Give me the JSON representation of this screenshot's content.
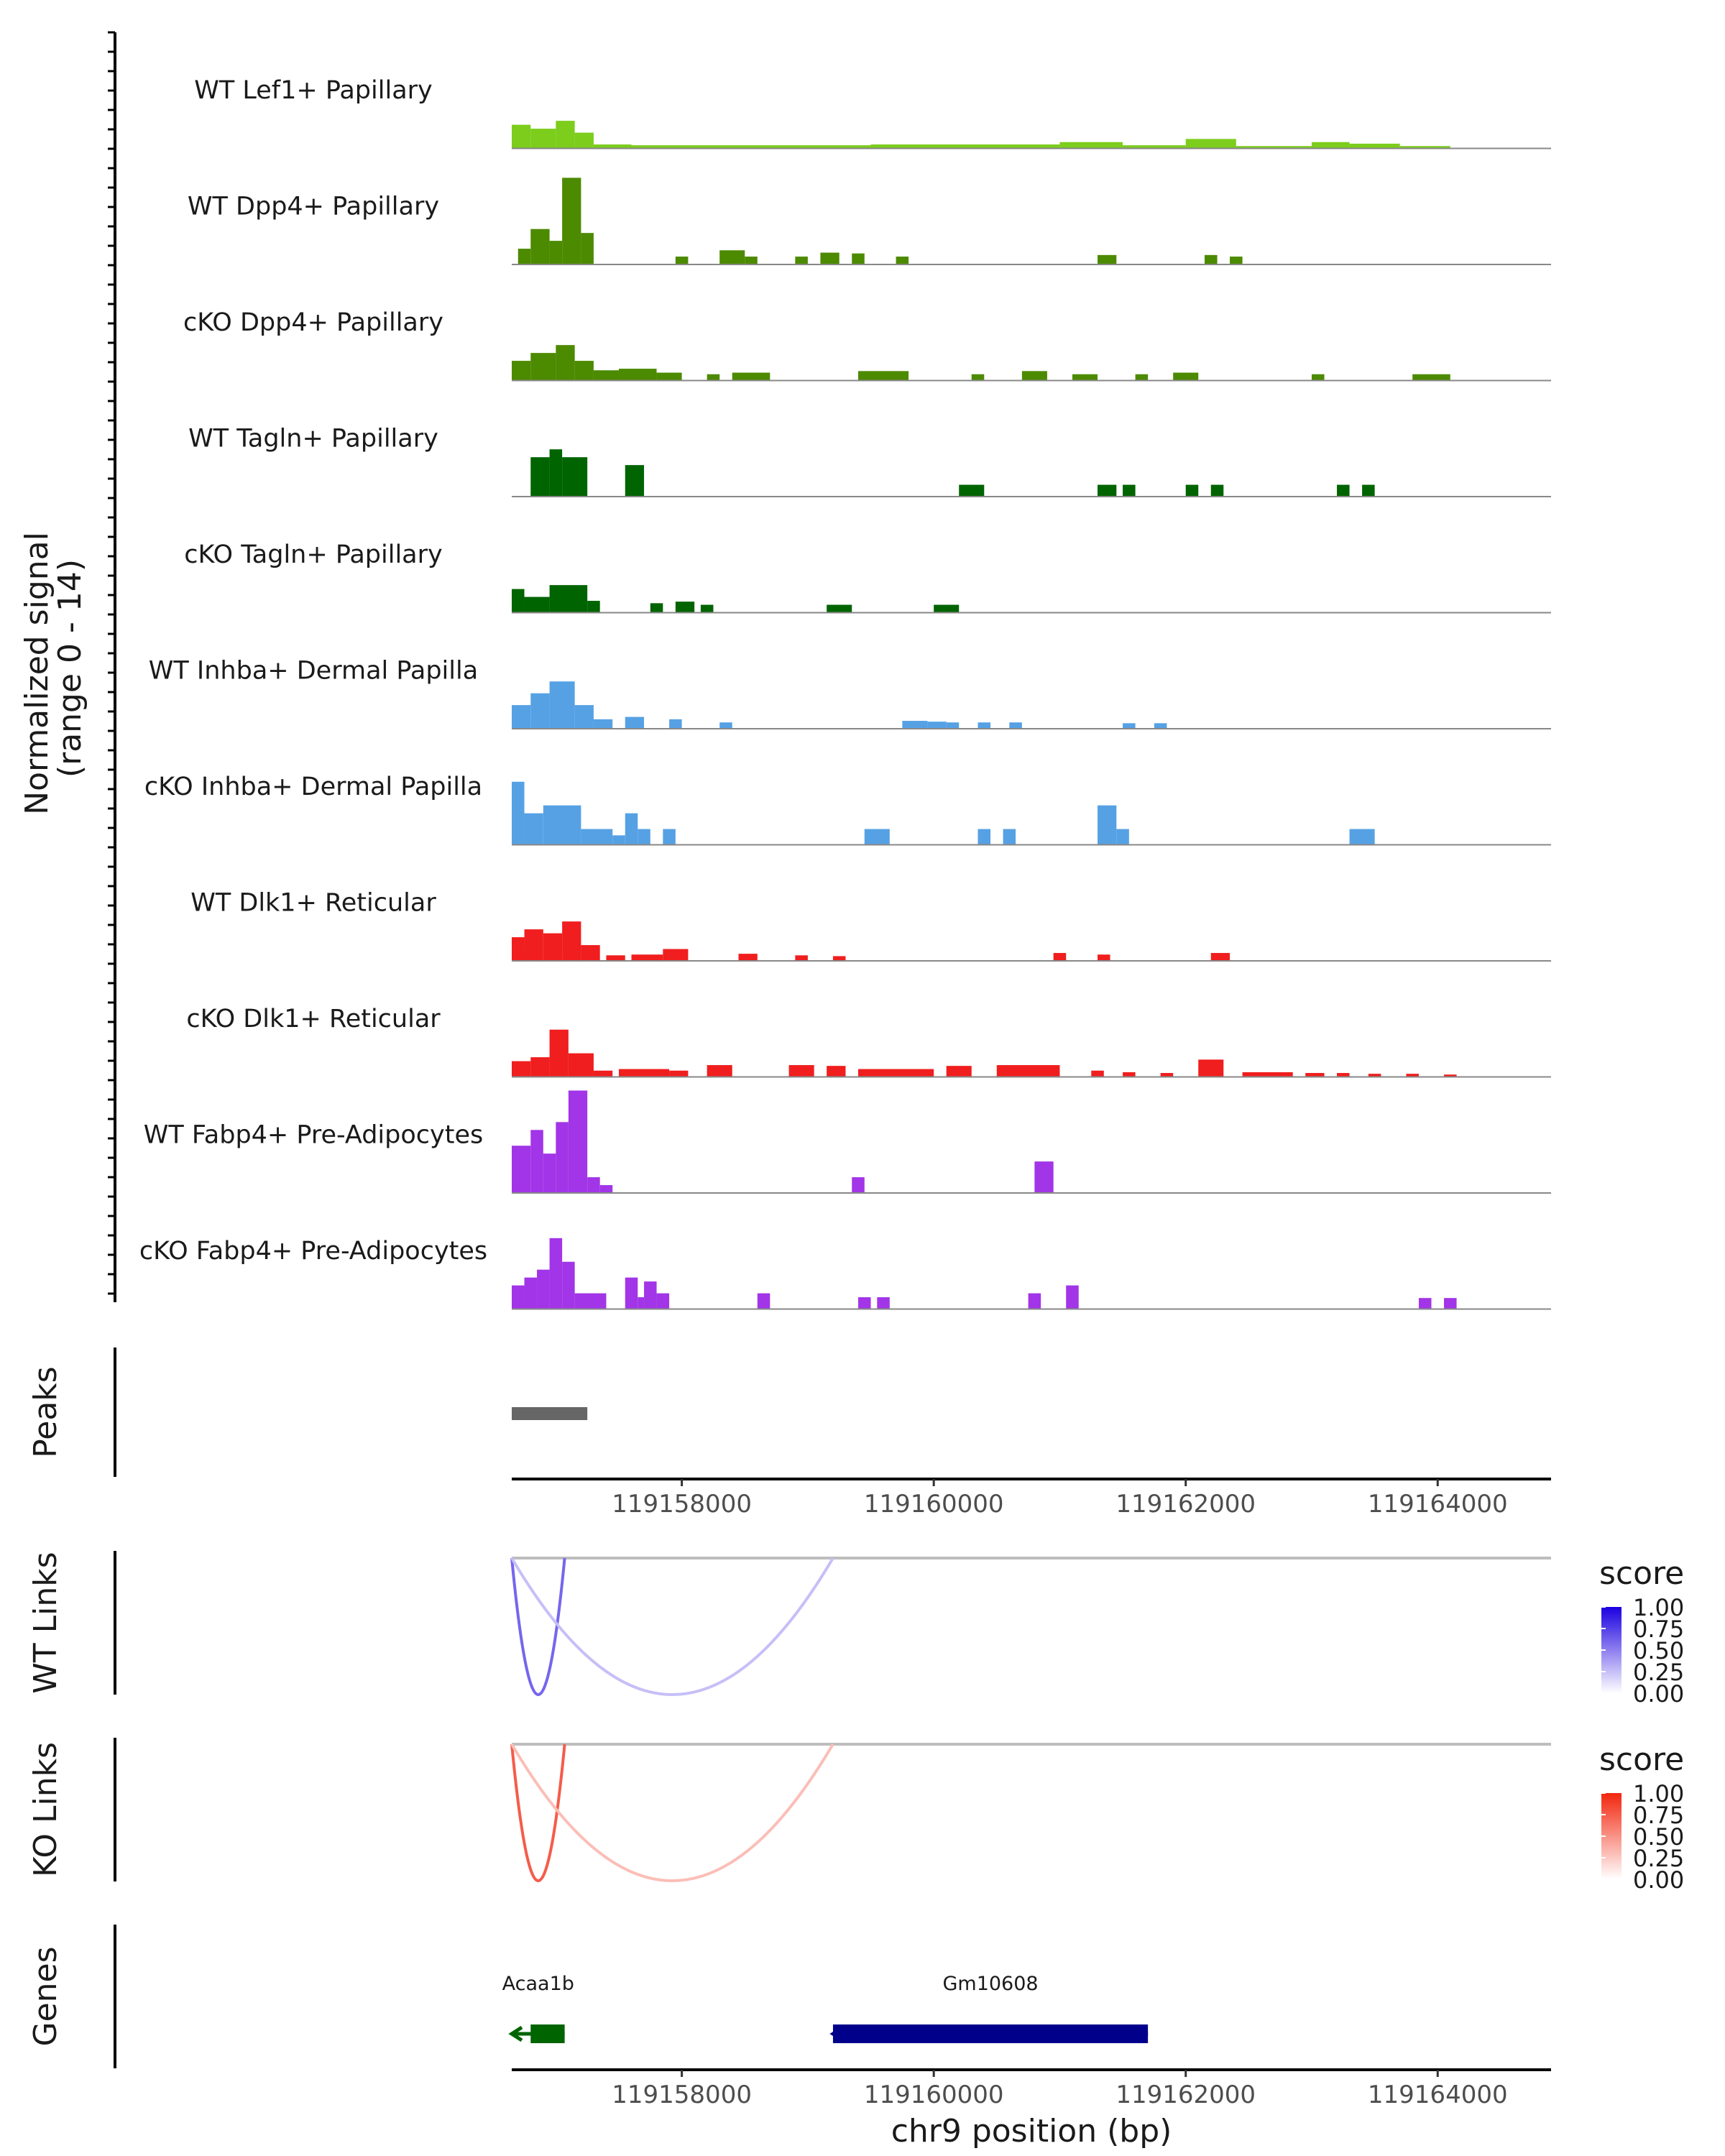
{
  "chart_data": {
    "type": "coverage",
    "region": {
      "chrom": "chr9",
      "start": 119156650,
      "end": 119164900
    },
    "xlabel": "chr9 position (bp)",
    "x_ticks": [
      119158000,
      119160000,
      119162000,
      119164000
    ],
    "coverage": {
      "ylabel": "Normalized signal\n(range 0 - 14)",
      "ylim": [
        0,
        14
      ],
      "tracks": [
        {
          "name": "WT Lef1+ Papillary",
          "color": "#7CCD1C",
          "segments": [
            [
              119156650,
              119156800,
              3
            ],
            [
              119156800,
              119157000,
              2.5
            ],
            [
              119157000,
              119157150,
              3.5
            ],
            [
              119157150,
              119157300,
              2
            ],
            [
              119157300,
              119157600,
              0.5
            ],
            [
              119157600,
              119159500,
              0.4
            ],
            [
              119159500,
              119161000,
              0.5
            ],
            [
              119161000,
              119161500,
              0.8
            ],
            [
              119161500,
              119162000,
              0.4
            ],
            [
              119162000,
              119162400,
              1.2
            ],
            [
              119162400,
              119163000,
              0.3
            ],
            [
              119163000,
              119163300,
              0.8
            ],
            [
              119163300,
              119163700,
              0.6
            ],
            [
              119163700,
              119164000,
              0.3
            ],
            [
              119164000,
              119164100,
              0.3
            ]
          ]
        },
        {
          "name": "WT Dpp4+ Papillary",
          "color": "#4C8A00",
          "segments": [
            [
              119156700,
              119156800,
              2
            ],
            [
              119156800,
              119156950,
              4.5
            ],
            [
              119156950,
              119157050,
              3
            ],
            [
              119157050,
              119157200,
              11
            ],
            [
              119157200,
              119157300,
              4
            ],
            [
              119157950,
              119158050,
              1
            ],
            [
              119158300,
              119158500,
              1.8
            ],
            [
              119158500,
              119158600,
              1
            ],
            [
              119158900,
              119159000,
              1
            ],
            [
              119159100,
              119159250,
              1.5
            ],
            [
              119159350,
              119159450,
              1.4
            ],
            [
              119159700,
              119159800,
              1
            ],
            [
              119161300,
              119161450,
              1.2
            ],
            [
              119162150,
              119162250,
              1.2
            ],
            [
              119162350,
              119162450,
              1
            ]
          ]
        },
        {
          "name": "cKO Dpp4+ Papillary",
          "color": "#4C8A00",
          "segments": [
            [
              119156650,
              119156800,
              2.5
            ],
            [
              119156800,
              119157000,
              3.5
            ],
            [
              119157000,
              119157150,
              4.5
            ],
            [
              119157150,
              119157300,
              2.5
            ],
            [
              119157300,
              119157500,
              1.3
            ],
            [
              119157500,
              119157800,
              1.5
            ],
            [
              119157800,
              119158000,
              1
            ],
            [
              119158200,
              119158300,
              0.8
            ],
            [
              119158400,
              119158700,
              1
            ],
            [
              119159400,
              119159800,
              1.2
            ],
            [
              119160300,
              119160400,
              0.8
            ],
            [
              119160700,
              119160900,
              1.2
            ],
            [
              119161100,
              119161300,
              0.8
            ],
            [
              119161600,
              119161700,
              0.8
            ],
            [
              119161900,
              119162100,
              1
            ],
            [
              119163000,
              119163100,
              0.8
            ],
            [
              119163800,
              119164100,
              0.8
            ]
          ]
        },
        {
          "name": "WT Tagln+ Papillary",
          "color": "#006400",
          "segments": [
            [
              119156800,
              119156950,
              5
            ],
            [
              119156950,
              119157050,
              6
            ],
            [
              119157050,
              119157250,
              5
            ],
            [
              119157550,
              119157700,
              4
            ],
            [
              119160200,
              119160400,
              1.5
            ],
            [
              119161300,
              119161450,
              1.5
            ],
            [
              119161500,
              119161600,
              1.5
            ],
            [
              119162000,
              119162100,
              1.5
            ],
            [
              119162200,
              119162300,
              1.5
            ],
            [
              119163200,
              119163300,
              1.5
            ],
            [
              119163400,
              119163500,
              1.5
            ]
          ]
        },
        {
          "name": "cKO Tagln+ Papillary",
          "color": "#006400",
          "segments": [
            [
              119156650,
              119156750,
              3
            ],
            [
              119156750,
              119156950,
              2
            ],
            [
              119156950,
              119157250,
              3.5
            ],
            [
              119157250,
              119157350,
              1.5
            ],
            [
              119157750,
              119157850,
              1.2
            ],
            [
              119157950,
              119158100,
              1.4
            ],
            [
              119158150,
              119158250,
              1
            ],
            [
              119159150,
              119159350,
              1
            ],
            [
              119160000,
              119160200,
              1
            ]
          ]
        },
        {
          "name": "WT Inhba+ Dermal Papilla",
          "color": "#56A1E4",
          "segments": [
            [
              119156650,
              119156800,
              3
            ],
            [
              119156800,
              119156950,
              4.5
            ],
            [
              119156950,
              119157150,
              6
            ],
            [
              119157150,
              119157300,
              3
            ],
            [
              119157300,
              119157450,
              1.2
            ],
            [
              119157550,
              119157700,
              1.5
            ],
            [
              119157900,
              119158000,
              1.2
            ],
            [
              119158300,
              119158400,
              0.8
            ],
            [
              119159750,
              119159950,
              1
            ],
            [
              119159950,
              119160100,
              0.9
            ],
            [
              119160100,
              119160200,
              0.8
            ],
            [
              119160350,
              119160450,
              0.8
            ],
            [
              119160600,
              119160700,
              0.8
            ],
            [
              119161500,
              119161600,
              0.7
            ],
            [
              119161750,
              119161850,
              0.7
            ]
          ]
        },
        {
          "name": "cKO Inhba+ Dermal Papilla",
          "color": "#56A1E4",
          "segments": [
            [
              119156650,
              119156750,
              8
            ],
            [
              119156750,
              119156900,
              4
            ],
            [
              119156900,
              119157200,
              5
            ],
            [
              119157200,
              119157450,
              2
            ],
            [
              119157450,
              119157550,
              1.2
            ],
            [
              119157550,
              119157650,
              4
            ],
            [
              119157650,
              119157750,
              2
            ],
            [
              119157850,
              119157950,
              2
            ],
            [
              119159450,
              119159650,
              2
            ],
            [
              119160350,
              119160450,
              2
            ],
            [
              119160550,
              119160650,
              2
            ],
            [
              119161300,
              119161450,
              5
            ],
            [
              119161450,
              119161550,
              2
            ],
            [
              119163300,
              119163500,
              2
            ]
          ]
        },
        {
          "name": "WT Dlk1+ Reticular",
          "color": "#F01E1E",
          "segments": [
            [
              119156650,
              119156750,
              3
            ],
            [
              119156750,
              119156900,
              4
            ],
            [
              119156900,
              119157050,
              3.5
            ],
            [
              119157050,
              119157200,
              5
            ],
            [
              119157200,
              119157350,
              2
            ],
            [
              119157400,
              119157550,
              0.7
            ],
            [
              119157600,
              119157850,
              0.8
            ],
            [
              119157850,
              119158050,
              1.5
            ],
            [
              119158450,
              119158600,
              0.9
            ],
            [
              119158900,
              119159000,
              0.7
            ],
            [
              119159200,
              119159300,
              0.6
            ],
            [
              119160950,
              119161050,
              1
            ],
            [
              119161300,
              119161400,
              0.8
            ],
            [
              119162200,
              119162350,
              1
            ]
          ]
        },
        {
          "name": "cKO Dlk1+ Reticular",
          "color": "#F01E1E",
          "segments": [
            [
              119156650,
              119156800,
              2
            ],
            [
              119156800,
              119156950,
              2.5
            ],
            [
              119156950,
              119157100,
              6
            ],
            [
              119157100,
              119157300,
              3
            ],
            [
              119157300,
              119157450,
              0.8
            ],
            [
              119157500,
              119157900,
              1
            ],
            [
              119157900,
              119158050,
              0.8
            ],
            [
              119158200,
              119158400,
              1.5
            ],
            [
              119158850,
              119159050,
              1.5
            ],
            [
              119159150,
              119159300,
              1.4
            ],
            [
              119159400,
              119160000,
              1
            ],
            [
              119160100,
              119160300,
              1.4
            ],
            [
              119160500,
              119161000,
              1.5
            ],
            [
              119161250,
              119161350,
              0.8
            ],
            [
              119161500,
              119161600,
              0.6
            ],
            [
              119161800,
              119161900,
              0.5
            ],
            [
              119162100,
              119162300,
              2.2
            ],
            [
              119162450,
              119162850,
              0.6
            ],
            [
              119162950,
              119163100,
              0.5
            ],
            [
              119163200,
              119163300,
              0.5
            ],
            [
              119163450,
              119163550,
              0.4
            ],
            [
              119163750,
              119163850,
              0.4
            ],
            [
              119164050,
              119164150,
              0.3
            ]
          ]
        },
        {
          "name": "WT Fabp4+ Pre-Adipocytes",
          "color": "#A235E7",
          "segments": [
            [
              119156650,
              119156800,
              6
            ],
            [
              119156800,
              119156900,
              8
            ],
            [
              119156900,
              119157000,
              5
            ],
            [
              119157000,
              119157100,
              9
            ],
            [
              119157100,
              119157250,
              13
            ],
            [
              119157250,
              119157350,
              2
            ],
            [
              119157350,
              119157450,
              1
            ],
            [
              119159350,
              119159450,
              2
            ],
            [
              119160800,
              119160950,
              4
            ]
          ]
        },
        {
          "name": "cKO Fabp4+ Pre-Adipocytes",
          "color": "#A235E7",
          "segments": [
            [
              119156650,
              119156750,
              3
            ],
            [
              119156750,
              119156850,
              4
            ],
            [
              119156850,
              119156950,
              5
            ],
            [
              119156950,
              119157050,
              9
            ],
            [
              119157050,
              119157150,
              6
            ],
            [
              119157150,
              119157400,
              2
            ],
            [
              119157550,
              119157650,
              4
            ],
            [
              119157650,
              119157700,
              1.5
            ],
            [
              119157700,
              119157800,
              3.5
            ],
            [
              119157800,
              119157900,
              2
            ],
            [
              119158600,
              119158700,
              2
            ],
            [
              119159400,
              119159500,
              1.5
            ],
            [
              119159550,
              119159650,
              1.5
            ],
            [
              119160750,
              119160850,
              2
            ],
            [
              119161050,
              119161150,
              3
            ],
            [
              119163850,
              119163950,
              1.4
            ],
            [
              119164050,
              119164150,
              1.4
            ]
          ]
        }
      ]
    },
    "peaks": {
      "label": "Peaks",
      "color": "#666666",
      "intervals": [
        [
          119156650,
          119157250
        ]
      ]
    },
    "links": [
      {
        "label": "WT Links",
        "colorbar_low": "#ffffff",
        "colorbar_high": "#1B00E0",
        "legend_title": "score",
        "legend_ticks": [
          "1.00",
          "0.75",
          "0.50",
          "0.25",
          "0.00"
        ],
        "arcs": [
          {
            "start": 119156650,
            "end": 119157070,
            "score": 0.6
          },
          {
            "start": 119156650,
            "end": 119159200,
            "score": 0.25
          }
        ]
      },
      {
        "label": "KO Links",
        "colorbar_low": "#ffffff",
        "colorbar_high": "#F2260E",
        "legend_title": "score",
        "legend_ticks": [
          "1.00",
          "0.75",
          "0.50",
          "0.25",
          "0.00"
        ],
        "arcs": [
          {
            "start": 119156650,
            "end": 119157070,
            "score": 0.75
          },
          {
            "start": 119156650,
            "end": 119159200,
            "score": 0.3
          }
        ]
      }
    ],
    "genes": {
      "label": "Genes",
      "items": [
        {
          "name": "Acaa1b",
          "start": 119156650,
          "end": 119157070,
          "exon_start": 119156800,
          "exon_end": 119157070,
          "strand": "-",
          "color": "#006400"
        },
        {
          "name": "Gm10608",
          "start": 119159200,
          "end": 119161700,
          "exon_start": 119159200,
          "exon_end": 119161700,
          "strand": "-",
          "color": "#00008B"
        }
      ]
    }
  }
}
